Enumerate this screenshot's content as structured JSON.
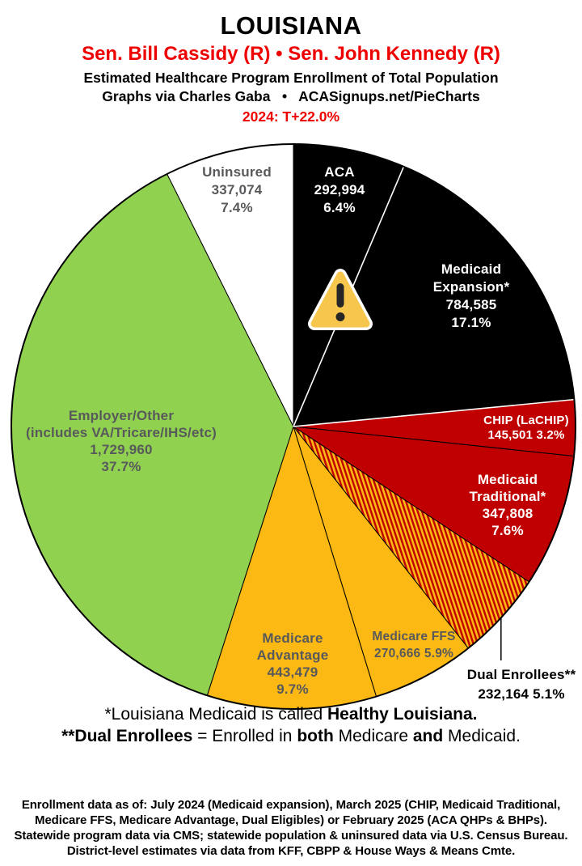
{
  "header": {
    "title": "LOUISIANA",
    "senators": "Sen. Bill Cassidy (R) • Sen. John Kennedy (R)",
    "subtitle1": "Estimated Healthcare Program Enrollment of Total Population",
    "subtitle2": "Graphs via Charles Gaba   •   ACASignups.net/PieCharts",
    "trend": "2024: T+22.0%"
  },
  "colors": {
    "accent_red": "#EE0000",
    "slice_black": "#000000",
    "slice_red": "#C00000",
    "slice_gold": "#FCB813",
    "slice_green": "#90D150",
    "slice_white": "#FFFFFF",
    "label_gray": "#58595B",
    "warning_fill": "#F7C64C"
  },
  "icons": {
    "warning": "warning-triangle-icon"
  },
  "chart_data": {
    "type": "pie",
    "title": "Estimated Healthcare Program Enrollment of Total Population",
    "start_angle_deg": 0,
    "direction": "clockwise",
    "legend_position": "in-slice labels",
    "slices": [
      {
        "name": "ACA",
        "value": 292994,
        "pct": 6.4,
        "color": "#000000",
        "label_lines": [
          "ACA",
          "292,994",
          "6.4%"
        ]
      },
      {
        "name": "Medicaid Expansion*",
        "value": 784585,
        "pct": 17.1,
        "color": "#000000",
        "edge": "white",
        "label_lines": [
          "Medicaid",
          "Expansion*",
          "784,585",
          "17.1%"
        ]
      },
      {
        "name": "CHIP (LaCHIP)",
        "value": 145501,
        "pct": 3.2,
        "color": "#C00000",
        "edge": "white",
        "label_lines": [
          "CHIP (LaCHIP)",
          "145,501 3.2%"
        ]
      },
      {
        "name": "Medicaid Traditional*",
        "value": 347808,
        "pct": 7.6,
        "color": "#C00000",
        "label_lines": [
          "Medicaid",
          "Traditional*",
          "347,808",
          "7.6%"
        ]
      },
      {
        "name": "Dual Enrollees**",
        "value": 232164,
        "pct": 5.1,
        "color": "#FCB813",
        "hatch_stripe": "#C00000",
        "leader_line": true,
        "label_lines": [
          "Dual Enrollees**",
          "232,164 5.1%"
        ]
      },
      {
        "name": "Medicare FFS",
        "value": 270666,
        "pct": 5.9,
        "color": "#FCB813",
        "label_lines": [
          "Medicare FFS",
          "270,666 5.9%"
        ]
      },
      {
        "name": "Medicare Advantage",
        "value": 443479,
        "pct": 9.7,
        "color": "#FCB813",
        "label_lines": [
          "Medicare",
          "Advantage",
          "443,479",
          "9.7%"
        ]
      },
      {
        "name": "Employer/Other",
        "value": 1729960,
        "pct": 37.7,
        "color": "#90D150",
        "label_lines": [
          "Employer/Other",
          "(includes VA/Tricare/IHS/etc)",
          "1,729,960",
          "37.7%"
        ]
      },
      {
        "name": "Uninsured",
        "value": 337074,
        "pct": 7.4,
        "color": "#FFFFFF",
        "label_lines": [
          "Uninsured",
          "337,074",
          "7.4%"
        ]
      }
    ]
  },
  "footnotes": {
    "line1": {
      "pre": "*Louisiana Medicaid is called ",
      "bold": "Healthy Louisiana."
    },
    "line2": {
      "bold1": "**Dual Enrollees",
      "mid1": " = Enrolled in ",
      "bold2": "both",
      "mid2": " Medicare ",
      "bold3": "and",
      "end": " Medicaid."
    }
  },
  "disclaimer": {
    "lines": [
      "Enrollment data as of: July 2024 (Medicaid expansion), March 2025 (CHIP, Medicaid Traditional,",
      "Medicare FFS, Medicare Advantage, Dual Eligibles) or February 2025 (ACA QHPs & BHPs).",
      "Statewide program data via CMS; statewide population & uninsured data via U.S. Census Bureau.",
      "District-level estimates via data from KFF, CBPP & House Ways & Means Cmte."
    ]
  }
}
